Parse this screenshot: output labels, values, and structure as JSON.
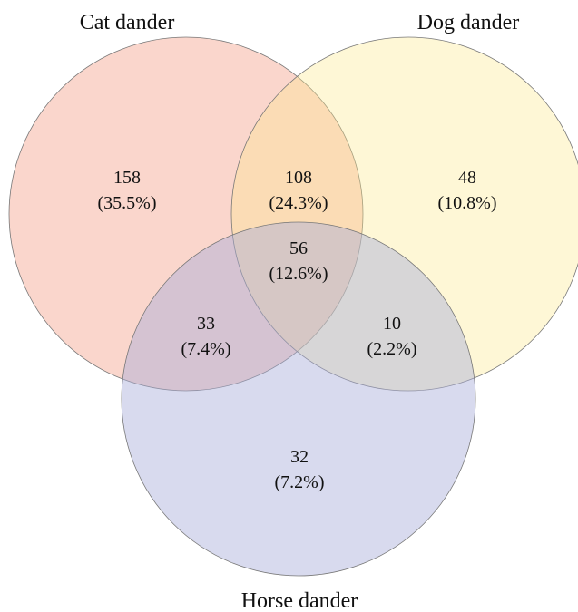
{
  "sets": [
    {
      "name": "Cat dander",
      "color": "#f08a6e"
    },
    {
      "name": "Dog dander",
      "color": "#fde98a"
    },
    {
      "name": "Horse dander",
      "color": "#a8acd9"
    }
  ],
  "regions": [
    {
      "id": "cat-only",
      "count": "158",
      "percent": "(35.5%)"
    },
    {
      "id": "cat-dog",
      "count": "108",
      "percent": "(24.3%)"
    },
    {
      "id": "dog-only",
      "count": "48",
      "percent": "(10.8%)"
    },
    {
      "id": "all-three",
      "count": "56",
      "percent": "(12.6%)"
    },
    {
      "id": "cat-horse",
      "count": "33",
      "percent": "(7.4%)"
    },
    {
      "id": "dog-horse",
      "count": "10",
      "percent": "(2.2%)"
    },
    {
      "id": "horse-only",
      "count": "32",
      "percent": "(7.2%)"
    }
  ]
}
